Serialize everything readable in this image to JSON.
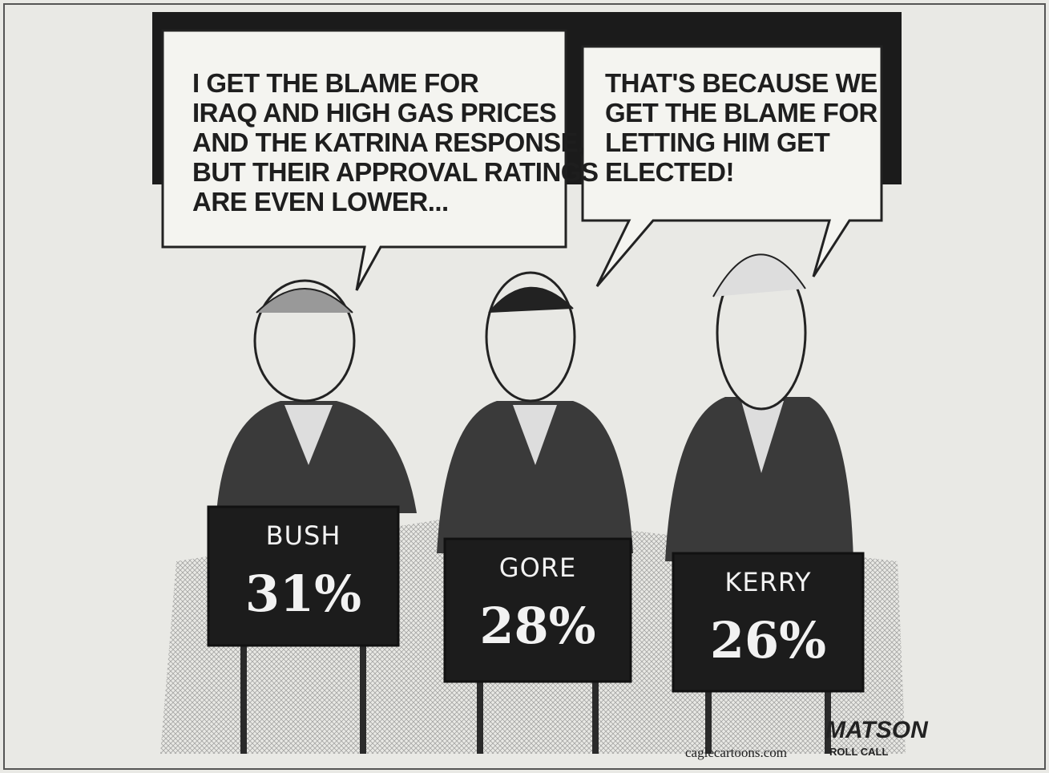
{
  "bubbles": [
    {
      "lines": [
        "I GET THE BLAME FOR",
        "IRAQ AND HIGH GAS PRICES",
        "AND THE KATRINA RESPONSE,",
        "BUT THEIR APPROVAL RATINGS",
        "ARE EVEN LOWER..."
      ]
    },
    {
      "lines": [
        "THAT'S BECAUSE WE",
        "GET THE BLAME FOR",
        "LETTING HIM GET",
        "ELECTED!"
      ]
    }
  ],
  "podiums": [
    {
      "name": "BUSH",
      "rating": "31%"
    },
    {
      "name": "GORE",
      "rating": "28%"
    },
    {
      "name": "KERRY",
      "rating": "26%"
    }
  ],
  "signature": "MATSON",
  "publication": "ROLL CALL",
  "credit": "caglecartoons.com"
}
